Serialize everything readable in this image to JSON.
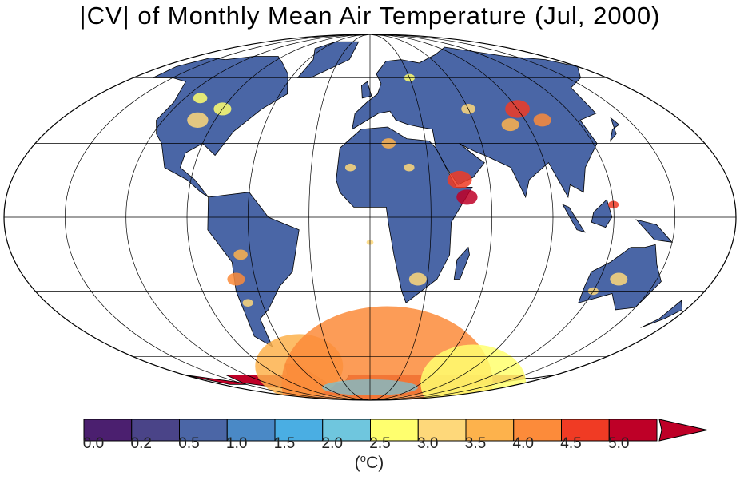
{
  "title": "|CV| of Monthly Mean Air Temperature (Jul, 2000)",
  "colorbar": {
    "unit_prefix": "(",
    "unit_degree": "o",
    "unit_suffix": "C)",
    "tick_labels": [
      "0.0",
      "0.2",
      "0.5",
      "1.0",
      "1.5",
      "2.0",
      "2.5",
      "3.0",
      "3.5",
      "4.0",
      "4.5",
      "5.0"
    ],
    "colors": [
      "#4b1f6f",
      "#4a4488",
      "#4b66a6",
      "#4a89c6",
      "#4aaee3",
      "#6fc6de",
      "#ffff6e",
      "#fed87a",
      "#fdb24c",
      "#fc8b3a",
      "#f03b24",
      "#be0027"
    ],
    "overflow_color": "#be0027",
    "overflow_arrow": "right"
  },
  "map": {
    "projection": "Mollweide",
    "graticule_spacing_deg": 30,
    "land_base_color": "#4a66a6",
    "antarctica_color": "#be0027"
  }
}
